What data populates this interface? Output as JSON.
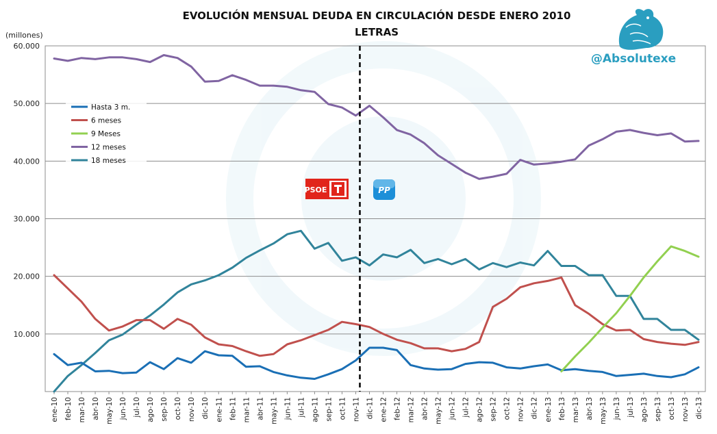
{
  "chart_data": {
    "type": "line",
    "title": "EVOLUCIÓN MENSUAL DEUDA EN CIRCULACIÓN DESDE ENERO 2010",
    "subtitle": "LETRAS",
    "unit_label": "(millones)",
    "ylim": [
      0,
      60000
    ],
    "yticks": [
      "60.000",
      "50.000",
      "40.000",
      "30.000",
      "20.000",
      "10.000"
    ],
    "ytick_values": [
      60000,
      50000,
      40000,
      30000,
      20000,
      10000
    ],
    "grid": true,
    "legend_position": "upper-left",
    "categories": [
      "ene-10",
      "feb-10",
      "mar-10",
      "abr-10",
      "may-10",
      "jun-10",
      "jul-10",
      "ago-10",
      "sep-10",
      "oct-10",
      "nov-10",
      "dic-10",
      "ene-11",
      "feb-11",
      "mar-11",
      "abr-11",
      "may-11",
      "jun-11",
      "jul-11",
      "ago-11",
      "sep-11",
      "oct-11",
      "nov-11",
      "dic-11",
      "ene-12",
      "feb-12",
      "mar-12",
      "abr-12",
      "may-12",
      "jun-12",
      "jul-12",
      "ago-12",
      "sep-12",
      "oct-12",
      "nov-12",
      "dic-12",
      "ene-13",
      "feb-13",
      "mar-13",
      "abr-13",
      "may-13",
      "jun-13",
      "jul-13",
      "ago-13",
      "sep-13",
      "oct-13",
      "nov-13",
      "dic-13"
    ],
    "separator_after": "nov-11",
    "series": [
      {
        "name": "Hasta 3 m.",
        "color": "#1a6fb5",
        "values": [
          6500,
          4600,
          5000,
          3500,
          3600,
          3200,
          3300,
          5100,
          3900,
          5800,
          5000,
          7000,
          6300,
          6200,
          4300,
          4400,
          3400,
          2800,
          2400,
          2200,
          3000,
          3900,
          5400,
          7600,
          7600,
          7200,
          4600,
          4000,
          3800,
          3900,
          4800,
          5100,
          5000,
          4200,
          4000,
          4400,
          4700,
          3700,
          3900,
          3600,
          3400,
          2700,
          2900,
          3100,
          2700,
          2500,
          3000,
          4200
        ]
      },
      {
        "name": "6 meses",
        "color": "#c0504d",
        "values": [
          20200,
          17900,
          15600,
          12600,
          10600,
          11300,
          12400,
          12400,
          10900,
          12600,
          11600,
          9400,
          8200,
          7900,
          7000,
          6200,
          6500,
          8200,
          8900,
          9800,
          10700,
          12100,
          11700,
          11200,
          10000,
          9000,
          8400,
          7500,
          7500,
          7000,
          7400,
          8600,
          14700,
          16100,
          18100,
          18800,
          19200,
          19800,
          15000,
          13500,
          11700,
          10600,
          10700,
          9100,
          8600,
          8300,
          8100,
          8600
        ]
      },
      {
        "name": "9 Meses",
        "color": "#92d050",
        "values": [
          null,
          null,
          null,
          null,
          null,
          null,
          null,
          null,
          null,
          null,
          null,
          null,
          null,
          null,
          null,
          null,
          null,
          null,
          null,
          null,
          null,
          null,
          null,
          null,
          null,
          null,
          null,
          null,
          null,
          null,
          null,
          null,
          null,
          null,
          null,
          null,
          null,
          3500,
          6100,
          8500,
          11100,
          13600,
          16600,
          19800,
          22600,
          25200,
          24400,
          23400
        ]
      },
      {
        "name": "12 meses",
        "color": "#8064a2",
        "values": [
          57800,
          57400,
          57900,
          57700,
          58000,
          58000,
          57700,
          57200,
          58400,
          57900,
          56400,
          53800,
          53900,
          54900,
          54100,
          53100,
          53100,
          52900,
          52300,
          52000,
          49900,
          49300,
          47900,
          49600,
          47600,
          45400,
          44600,
          43100,
          41000,
          39500,
          38000,
          36900,
          37300,
          37800,
          40200,
          39400,
          39600,
          39900,
          40300,
          42700,
          43800,
          45100,
          45400,
          44900,
          44500,
          44800,
          43400,
          43500
        ]
      },
      {
        "name": "18 meses",
        "color": "#31849b",
        "values": [
          0,
          2700,
          4600,
          6700,
          8900,
          9900,
          11600,
          13200,
          15100,
          17200,
          18600,
          19300,
          20200,
          21500,
          23200,
          24500,
          25700,
          27300,
          27900,
          24800,
          25800,
          22700,
          23300,
          21900,
          23800,
          23300,
          24600,
          22300,
          23000,
          22100,
          23000,
          21200,
          22300,
          21600,
          22400,
          21900,
          24400,
          21800,
          21800,
          20200,
          20200,
          16600,
          16600,
          12600,
          12600,
          10700,
          10700,
          9000
        ]
      }
    ]
  },
  "watermark": {
    "handle": "@Absolutexe"
  },
  "logos": {
    "left": "PSOE",
    "right": "PP"
  },
  "colors": {
    "grid": "#8c8c8c",
    "plot_border": "#8c8c8c",
    "separator": "#000000",
    "psoe_red": "#e1251b",
    "pp_blue": "#1d8fd8",
    "watermark": "#2a9ec0"
  }
}
